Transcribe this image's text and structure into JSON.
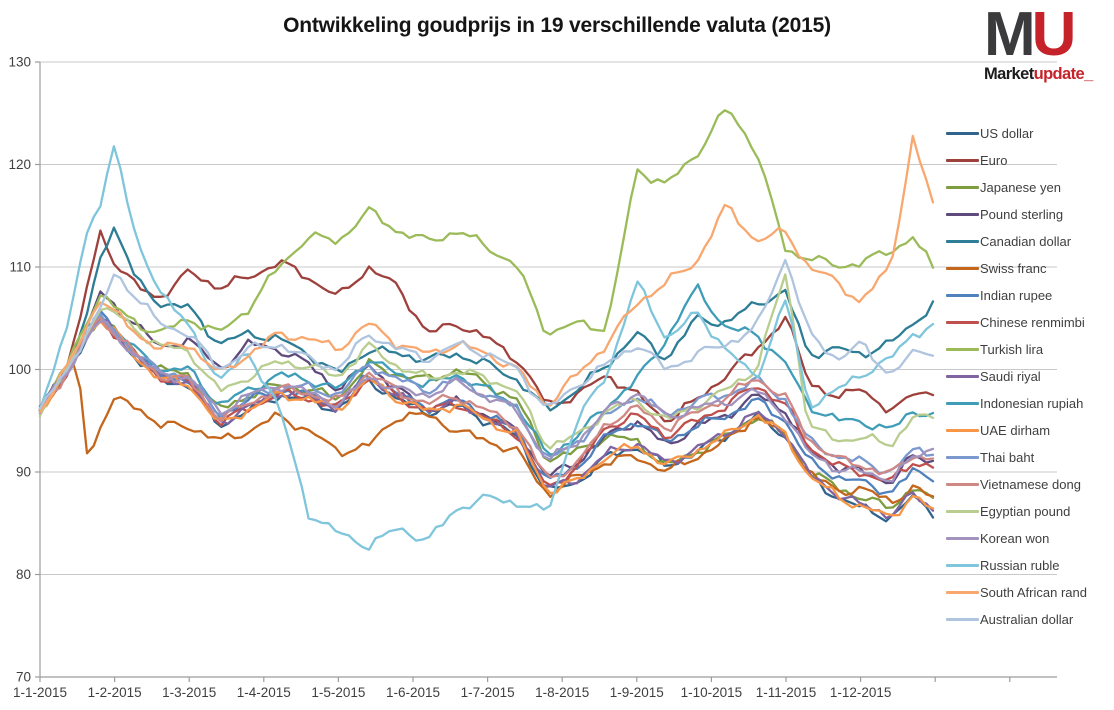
{
  "title": "Ontwikkeling goudprijs in 19 verschillende valuta (2015)",
  "logo": {
    "m": "M",
    "u": "U",
    "market": "Market",
    "update": "update_"
  },
  "y_axis": {
    "min": 70,
    "max": 130,
    "step": 10,
    "ticks": [
      "70",
      "80",
      "90",
      "100",
      "110",
      "120",
      "130"
    ]
  },
  "x_axis": {
    "labels": [
      "1-1-2015",
      "1-2-2015",
      "1-3-2015",
      "1-4-2015",
      "1-5-2015",
      "1-6-2015",
      "1-7-2015",
      "1-8-2015",
      "1-9-2015",
      "1-10-2015",
      "1-11-2015",
      "1-12-2015"
    ]
  },
  "colors": {
    "gridline": "#c8c8c8",
    "axis": "#9c9c9c",
    "tick_text": "#3f3f3f",
    "title_text": "#151515",
    "logo_dark": "#3b3b3d",
    "logo_red": "#c5222a"
  },
  "chart_data": {
    "type": "line",
    "title": "Ontwikkeling goudprijs in 19 verschillende valuta (2015)",
    "xlabel": "",
    "ylabel": "",
    "ylim": [
      70,
      130
    ],
    "grid": true,
    "legend_position": "right",
    "x_unit": "months_since_2015-01-01",
    "noise_amplitude": 0.28,
    "x": [
      0,
      0.15,
      0.35,
      0.5,
      0.65,
      0.8,
      1.0,
      1.3,
      1.6,
      2.0,
      2.4,
      2.8,
      3.2,
      3.6,
      4.0,
      4.4,
      4.8,
      5.2,
      5.6,
      6.0,
      6.4,
      6.8,
      7.2,
      7.6,
      8.0,
      8.4,
      8.8,
      9.2,
      9.6,
      10.0,
      10.3,
      10.7,
      11.0,
      11.4,
      11.7,
      12.0
    ],
    "series": [
      {
        "name": "US dollar",
        "color": "#31648c",
        "values": [
          96.0,
          97.5,
          99.5,
          101.5,
          103.5,
          104.8,
          103.5,
          101.0,
          99.0,
          98.5,
          94.5,
          96.0,
          97.5,
          97.0,
          96.0,
          99.0,
          97.0,
          95.8,
          96.5,
          94.9,
          93.5,
          88.0,
          89.0,
          91.5,
          92.5,
          90.5,
          92.0,
          93.5,
          95.5,
          93.5,
          89.5,
          87.5,
          86.5,
          85.5,
          87.5,
          86.0
        ]
      },
      {
        "name": "Euro",
        "color": "#9e413c",
        "values": [
          96.0,
          98.0,
          100.5,
          103.5,
          108.5,
          113.5,
          110.5,
          108.0,
          107.0,
          109.5,
          108.0,
          109.0,
          110.5,
          109.0,
          107.0,
          110.0,
          108.0,
          103.5,
          104.5,
          103.0,
          101.0,
          96.5,
          97.5,
          99.5,
          97.5,
          95.0,
          97.0,
          99.5,
          102.0,
          105.0,
          99.0,
          97.0,
          98.5,
          95.5,
          98.0,
          97.5
        ]
      },
      {
        "name": "Japanese yen",
        "color": "#7e9d3f",
        "values": [
          96.0,
          97.8,
          99.8,
          101.8,
          103.8,
          105.2,
          103.8,
          101.5,
          100.0,
          99.5,
          96.0,
          97.5,
          98.5,
          98.0,
          97.2,
          100.5,
          99.5,
          99.0,
          100.0,
          98.5,
          97.0,
          91.2,
          92.0,
          93.5,
          93.0,
          90.5,
          92.0,
          93.5,
          95.5,
          93.5,
          90.0,
          88.5,
          87.5,
          86.5,
          88.5,
          87.0
        ]
      },
      {
        "name": "Pound sterling",
        "color": "#5f4a7d",
        "values": [
          96.0,
          97.7,
          99.8,
          102.0,
          104.5,
          107.5,
          106.0,
          104.5,
          102.0,
          103.0,
          100.0,
          102.5,
          102.0,
          100.5,
          98.0,
          100.5,
          98.0,
          96.0,
          96.8,
          95.5,
          94.0,
          89.5,
          91.0,
          93.5,
          95.0,
          92.5,
          94.5,
          95.5,
          97.5,
          96.0,
          92.0,
          90.5,
          90.0,
          89.0,
          91.5,
          91.0
        ]
      },
      {
        "name": "Canadian dollar",
        "color": "#2c7d95",
        "values": [
          96.0,
          97.8,
          100.0,
          102.5,
          105.5,
          111.0,
          114.0,
          108.5,
          106.5,
          106.0,
          102.5,
          103.5,
          103.0,
          101.5,
          99.5,
          102.0,
          101.5,
          101.0,
          101.5,
          100.5,
          99.0,
          96.0,
          98.0,
          100.5,
          103.5,
          101.0,
          105.0,
          104.5,
          106.5,
          107.5,
          101.5,
          102.0,
          101.5,
          102.5,
          104.5,
          106.5
        ]
      },
      {
        "name": "Swiss franc",
        "color": "#c4661b",
        "values": [
          96.0,
          97.5,
          99.5,
          100.8,
          90.8,
          94.5,
          97.0,
          96.5,
          94.5,
          94.5,
          93.0,
          94.0,
          95.5,
          94.0,
          92.0,
          92.5,
          95.5,
          95.5,
          94.0,
          93.0,
          92.0,
          87.8,
          89.5,
          91.0,
          91.5,
          90.0,
          91.5,
          93.0,
          95.5,
          93.5,
          90.0,
          88.0,
          88.5,
          87.0,
          88.5,
          87.3
        ]
      },
      {
        "name": "Indian rupee",
        "color": "#4f81bd",
        "values": [
          96.0,
          97.6,
          99.6,
          101.6,
          103.8,
          105.5,
          104.0,
          101.5,
          99.5,
          99.0,
          95.5,
          97.0,
          98.0,
          97.5,
          96.5,
          99.5,
          97.5,
          96.3,
          97.0,
          95.5,
          94.0,
          89.0,
          90.5,
          93.5,
          95.0,
          93.0,
          94.5,
          95.5,
          97.0,
          95.0,
          91.0,
          89.5,
          89.0,
          88.0,
          90.0,
          89.5
        ]
      },
      {
        "name": "Chinese renmimbi",
        "color": "#c0504d",
        "values": [
          96.0,
          97.5,
          99.6,
          101.6,
          103.6,
          105.0,
          103.6,
          101.2,
          99.2,
          98.7,
          94.8,
          96.2,
          97.7,
          97.2,
          96.2,
          99.2,
          97.2,
          96.0,
          96.7,
          95.1,
          93.7,
          88.3,
          90.5,
          94.5,
          95.5,
          93.5,
          95.0,
          96.5,
          98.5,
          96.5,
          92.5,
          90.5,
          90.0,
          89.0,
          91.0,
          90.5
        ]
      },
      {
        "name": "Turkish lira",
        "color": "#9bbb59",
        "values": [
          96.0,
          98.0,
          100.3,
          102.5,
          105.0,
          107.5,
          106.0,
          104.5,
          103.5,
          105.0,
          103.5,
          106.0,
          110.0,
          113.0,
          112.5,
          115.5,
          113.5,
          112.5,
          113.5,
          112.0,
          110.0,
          103.5,
          104.5,
          104.0,
          119.5,
          118.0,
          121.0,
          125.5,
          121.5,
          111.5,
          111.0,
          110.0,
          110.5,
          111.5,
          113.0,
          109.5
        ]
      },
      {
        "name": "Saudi riyal",
        "color": "#8064a2",
        "values": [
          96.0,
          97.6,
          99.7,
          101.7,
          103.7,
          105.0,
          103.7,
          101.3,
          99.3,
          98.8,
          94.8,
          96.3,
          97.8,
          97.3,
          96.3,
          99.3,
          97.3,
          96.1,
          96.8,
          95.2,
          93.8,
          88.3,
          89.3,
          91.8,
          92.8,
          90.8,
          92.3,
          93.8,
          95.8,
          93.8,
          89.8,
          87.8,
          86.8,
          85.8,
          87.8,
          86.3
        ]
      },
      {
        "name": "Indonesian rupiah",
        "color": "#3f9db8",
        "values": [
          96.0,
          97.7,
          99.8,
          101.9,
          103.9,
          105.3,
          104.0,
          101.8,
          100.0,
          100.0,
          96.5,
          98.0,
          99.5,
          99.0,
          98.0,
          101.0,
          99.5,
          98.5,
          99.5,
          98.0,
          96.5,
          91.5,
          93.5,
          96.5,
          99.0,
          103.0,
          108.0,
          104.0,
          103.5,
          100.5,
          96.5,
          95.0,
          95.0,
          94.0,
          96.0,
          95.5
        ]
      },
      {
        "name": "UAE dirham",
        "color": "#f79646",
        "values": [
          96.0,
          97.5,
          99.6,
          101.6,
          103.6,
          104.9,
          103.6,
          101.1,
          99.1,
          98.6,
          94.6,
          96.1,
          97.6,
          97.1,
          96.1,
          99.1,
          97.1,
          95.9,
          96.6,
          95.0,
          93.6,
          88.1,
          89.1,
          91.6,
          92.6,
          90.6,
          92.1,
          93.6,
          95.6,
          93.6,
          89.6,
          87.6,
          86.6,
          85.6,
          87.6,
          86.1
        ]
      },
      {
        "name": "Thai baht",
        "color": "#7b99ce",
        "values": [
          96.0,
          97.6,
          99.7,
          101.7,
          103.7,
          105.0,
          103.8,
          101.5,
          99.8,
          99.3,
          95.5,
          97.2,
          98.5,
          98.2,
          97.5,
          100.5,
          99.0,
          98.0,
          99.0,
          97.5,
          96.2,
          91.0,
          93.0,
          95.5,
          97.5,
          95.5,
          97.0,
          97.5,
          99.0,
          97.0,
          93.0,
          91.5,
          91.0,
          90.0,
          92.0,
          92.0
        ]
      },
      {
        "name": "Vietnamese dong",
        "color": "#d08885",
        "values": [
          96.0,
          97.6,
          99.6,
          101.6,
          103.6,
          105.0,
          103.7,
          101.3,
          99.4,
          99.0,
          95.2,
          96.7,
          98.2,
          97.7,
          96.8,
          99.8,
          97.8,
          96.7,
          97.4,
          95.9,
          94.5,
          89.2,
          90.8,
          94.8,
          96.3,
          94.3,
          95.8,
          97.3,
          99.2,
          97.2,
          93.2,
          91.2,
          90.7,
          89.7,
          91.7,
          91.2
        ]
      },
      {
        "name": "Egyptian pound",
        "color": "#b8cd8e",
        "values": [
          96.0,
          97.6,
          99.8,
          101.9,
          104.2,
          106.0,
          105.5,
          103.8,
          102.3,
          101.8,
          97.8,
          99.3,
          100.8,
          100.3,
          99.3,
          102.3,
          100.3,
          99.1,
          99.8,
          99.2,
          97.8,
          92.5,
          93.5,
          96.0,
          97.0,
          95.0,
          96.5,
          98.0,
          100.0,
          109.5,
          94.5,
          93.0,
          93.5,
          92.5,
          95.5,
          95.0
        ]
      },
      {
        "name": "Korean won",
        "color": "#a193be",
        "values": [
          96.0,
          97.6,
          99.6,
          101.5,
          103.4,
          104.7,
          103.5,
          101.2,
          99.5,
          99.2,
          95.8,
          97.5,
          98.5,
          97.8,
          96.5,
          99.3,
          98.0,
          97.5,
          98.8,
          97.3,
          96.0,
          91.0,
          93.0,
          96.0,
          97.8,
          95.3,
          96.3,
          96.8,
          98.0,
          95.5,
          91.8,
          90.3,
          90.0,
          89.3,
          91.3,
          92.5
        ]
      },
      {
        "name": "Russian ruble",
        "color": "#7fc5db",
        "values": [
          96.0,
          99.5,
          104.0,
          109.0,
          113.5,
          116.0,
          122.3,
          112.0,
          108.0,
          104.0,
          99.0,
          101.5,
          96.5,
          86.0,
          84.0,
          82.8,
          84.5,
          83.3,
          86.5,
          87.5,
          87.0,
          86.0,
          95.0,
          99.5,
          108.5,
          103.0,
          105.5,
          102.0,
          99.0,
          107.0,
          96.5,
          98.0,
          99.5,
          101.0,
          103.5,
          104.3
        ]
      },
      {
        "name": "South African rand",
        "color": "#f8a76f",
        "values": [
          96.0,
          97.8,
          100.0,
          102.2,
          104.6,
          107.0,
          105.5,
          103.5,
          102.0,
          102.5,
          99.5,
          101.5,
          103.5,
          103.0,
          102.0,
          104.5,
          102.5,
          101.5,
          102.5,
          101.5,
          100.0,
          96.5,
          99.5,
          102.5,
          106.5,
          108.5,
          110.5,
          116.0,
          112.5,
          113.5,
          110.0,
          108.5,
          106.5,
          110.0,
          122.5,
          115.5
        ]
      },
      {
        "name": "Australian dollar",
        "color": "#afc4de",
        "values": [
          96.0,
          97.7,
          99.8,
          101.8,
          103.9,
          105.5,
          109.5,
          107.0,
          104.5,
          103.5,
          100.0,
          102.0,
          102.5,
          101.0,
          100.0,
          103.5,
          102.0,
          101.0,
          102.5,
          101.5,
          100.0,
          96.0,
          98.5,
          100.5,
          102.5,
          100.0,
          101.5,
          102.5,
          104.0,
          111.0,
          103.5,
          101.0,
          102.5,
          99.5,
          101.5,
          101.9
        ]
      }
    ]
  }
}
